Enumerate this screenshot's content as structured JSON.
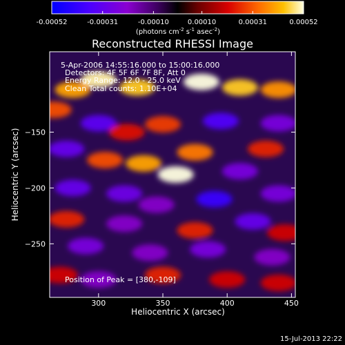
{
  "chart_data": {
    "type": "heatmap",
    "title": "Reconstructed RHESSI Image",
    "xlabel": "Heliocentric X (arcsec)",
    "ylabel": "Heliocentric Y (arcsec)",
    "xlim": [
      262,
      453
    ],
    "ylim": [
      -298,
      -78
    ],
    "xticks": [
      300,
      350,
      400,
      450
    ],
    "yticks": [
      -150,
      -200,
      -250
    ],
    "colorbar": {
      "ticks": [
        "-0.00052",
        "-0.00031",
        "-0.00010",
        "0.00010",
        "0.00031",
        "0.00052"
      ],
      "tick_values": [
        -0.00052,
        -0.00031,
        -0.0001,
        0.0001,
        0.00031,
        0.00052
      ],
      "range": [
        -0.00052,
        0.00052
      ],
      "unit_prefix": "(photons cm",
      "unit_sup1": "-2",
      "unit_mid1": " s",
      "unit_sup2": "-1",
      "unit_mid2": " asec",
      "unit_sup3": "-2",
      "unit_suffix": ")"
    },
    "annotations": [
      "5-Apr-2006 14:55:16.000 to 15:00:16.000",
      "Detectors: 4F 5F 6F 7F 8F, Att 0",
      "Energy Range: 12.0 - 25.0 keV",
      "Clean     Total counts: 1.10E+04"
    ],
    "peak_label": "Position of Peak = [380,-109]",
    "peak": [
      380,
      -109
    ],
    "blobs": [
      {
        "x": 300,
        "y": -103,
        "v": 0.0005
      },
      {
        "x": 280,
        "y": -112,
        "v": 0.0004
      },
      {
        "x": 330,
        "y": -110,
        "v": 0.00045
      },
      {
        "x": 380,
        "y": -105,
        "v": 0.00052
      },
      {
        "x": 410,
        "y": -110,
        "v": 0.00045
      },
      {
        "x": 440,
        "y": -112,
        "v": 0.00038
      },
      {
        "x": 265,
        "y": -130,
        "v": 0.0003
      },
      {
        "x": 300,
        "y": -142,
        "v": -0.00032
      },
      {
        "x": 322,
        "y": -150,
        "v": 0.00022
      },
      {
        "x": 350,
        "y": -143,
        "v": 0.00028
      },
      {
        "x": 395,
        "y": -140,
        "v": -0.00035
      },
      {
        "x": 440,
        "y": -142,
        "v": -0.00025
      },
      {
        "x": 275,
        "y": -165,
        "v": -0.0003
      },
      {
        "x": 305,
        "y": -175,
        "v": 0.0003
      },
      {
        "x": 335,
        "y": -178,
        "v": 0.0004
      },
      {
        "x": 360,
        "y": -188,
        "v": 0.00052
      },
      {
        "x": 375,
        "y": -168,
        "v": 0.00035
      },
      {
        "x": 430,
        "y": -165,
        "v": 0.00025
      },
      {
        "x": 410,
        "y": -185,
        "v": -0.00025
      },
      {
        "x": 280,
        "y": -200,
        "v": -0.0003
      },
      {
        "x": 320,
        "y": -205,
        "v": -0.00028
      },
      {
        "x": 345,
        "y": -215,
        "v": -0.0002
      },
      {
        "x": 390,
        "y": -210,
        "v": -0.0004
      },
      {
        "x": 440,
        "y": -205,
        "v": -0.00025
      },
      {
        "x": 275,
        "y": -228,
        "v": 0.00025
      },
      {
        "x": 320,
        "y": -232,
        "v": -0.0002
      },
      {
        "x": 375,
        "y": -238,
        "v": 0.00025
      },
      {
        "x": 420,
        "y": -230,
        "v": -0.0003
      },
      {
        "x": 445,
        "y": -240,
        "v": 0.0002
      },
      {
        "x": 290,
        "y": -252,
        "v": -0.00025
      },
      {
        "x": 340,
        "y": -258,
        "v": -0.0002
      },
      {
        "x": 385,
        "y": -255,
        "v": -0.00025
      },
      {
        "x": 435,
        "y": -262,
        "v": -0.0002
      },
      {
        "x": 270,
        "y": -278,
        "v": 0.0002
      },
      {
        "x": 300,
        "y": -282,
        "v": -0.0002
      },
      {
        "x": 350,
        "y": -278,
        "v": 0.00025
      },
      {
        "x": 400,
        "y": -282,
        "v": 0.0002
      },
      {
        "x": 440,
        "y": -285,
        "v": 0.0002
      }
    ]
  },
  "footer": {
    "timestamp": "15-Jul-2013 22:22"
  }
}
